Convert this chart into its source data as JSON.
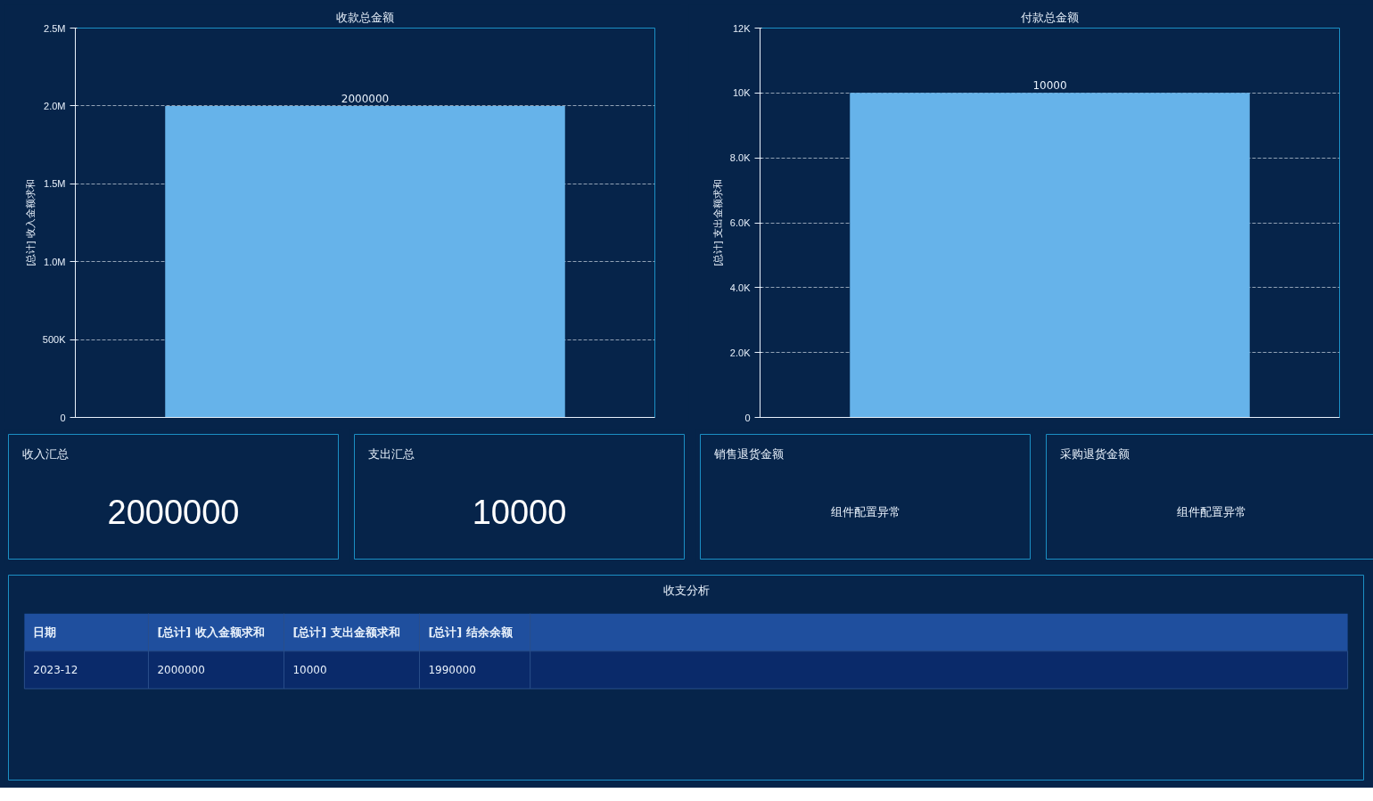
{
  "chart_data": [
    {
      "type": "bar",
      "title": "收款总金额",
      "ylabel": "[总计] 收入金额求和",
      "categories": [
        null
      ],
      "values": [
        2000000
      ],
      "color": "#66b3ea",
      "ylim": [
        0,
        2500000
      ],
      "yticks": [
        0,
        {
          "value": 500000,
          "label": "500K"
        },
        {
          "value": 1000000,
          "label": "1.0M"
        },
        {
          "value": 1500000,
          "label": "1.5M"
        },
        {
          "value": 2000000,
          "label": "2.0M"
        },
        {
          "value": 2500000,
          "label": "2.5M"
        }
      ],
      "grid": "y",
      "data_labels": true
    },
    {
      "type": "bar",
      "title": "付款总金额",
      "ylabel": "[总计] 支出金额求和",
      "categories": [
        null
      ],
      "values": [
        10000
      ],
      "color": "#66b3ea",
      "ylim": [
        0,
        12000
      ],
      "yticks": [
        0,
        {
          "value": 2000,
          "label": "2.0K"
        },
        {
          "value": 4000,
          "label": "4.0K"
        },
        {
          "value": 6000,
          "label": "6.0K"
        },
        {
          "value": 8000,
          "label": "8.0K"
        },
        {
          "value": 10000,
          "label": "10K"
        },
        {
          "value": 12000,
          "label": "12K"
        }
      ],
      "grid": "y",
      "data_labels": true
    },
    {
      "type": "other",
      "title": "收入汇总",
      "values": [
        2000000
      ],
      "data_labels": true
    },
    {
      "type": "other",
      "title": "支出汇总",
      "values": [
        10000
      ],
      "data_labels": true
    },
    {
      "type": "other",
      "title": "销售退货金额",
      "annotations": [
        "组件配置异常"
      ]
    },
    {
      "type": "other",
      "title": "采购退货金额",
      "annotations": [
        "组件配置异常"
      ]
    },
    {
      "type": "other",
      "title": "收支分析",
      "xlabel": "日期",
      "annotations": [
        "2023-12"
      ],
      "categories": [
        "[总计] 收入金额求和",
        "[总计] 支出金额求和",
        "[总计] 结余余额"
      ],
      "values": [
        2000000,
        10000,
        1990000
      ],
      "data_labels": true
    }
  ]
}
